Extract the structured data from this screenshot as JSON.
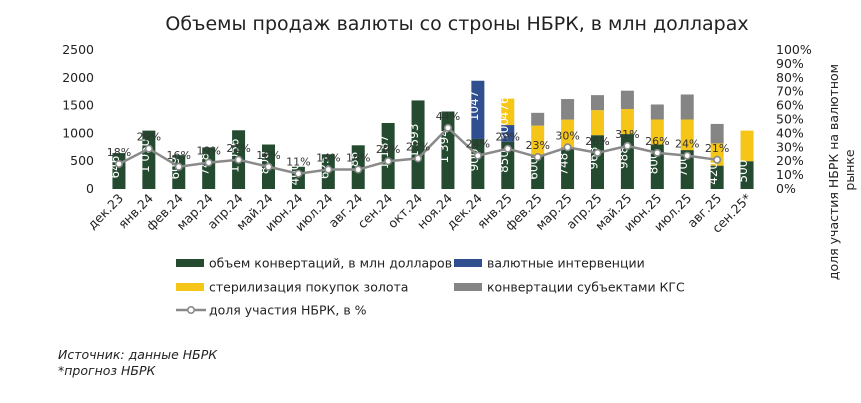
{
  "chart_data": {
    "type": "bar",
    "title": "Объемы продаж валюты со строны НБРК, в млн долларах",
    "ylabel": "",
    "y2label": "доля участия НБРК на валютном рынке",
    "ylim": [
      0,
      2500
    ],
    "y2lim": [
      0,
      1
    ],
    "yticks": [
      "0",
      "500",
      "1000",
      "1500",
      "2000",
      "2500"
    ],
    "y2ticks": [
      "0%",
      "10%",
      "20%",
      "30%",
      "40%",
      "50%",
      "60%",
      "70%",
      "80%",
      "90%",
      "100%"
    ],
    "categories": [
      "дек.23",
      "янв.24",
      "фев.24",
      "мар.24",
      "апр.24",
      "май.24",
      "июн.24",
      "июл.24",
      "авг.24",
      "сен.24",
      "окт.24",
      "ноя.24",
      "дек.24",
      "янв.25",
      "фев.25",
      "мар.25",
      "апр.25",
      "май.25",
      "июн.25",
      "июл.25",
      "авг.25",
      "сен.25*"
    ],
    "series": [
      {
        "name": "объем конвертаций, в млн долларов",
        "color": "#244a2f",
        "values": [
          646,
          1050,
          609,
          748,
          1056,
          800,
          400,
          625,
          786,
          1187,
          1593,
          1394,
          900,
          850,
          600,
          748,
          968,
          988,
          800,
          700,
          420,
          500
        ],
        "labels": [
          "646",
          "1 050",
          "609",
          "748",
          "1 056",
          "800",
          "400",
          "625",
          "786",
          "1 187",
          "1 593",
          "1 394",
          "900",
          "850",
          "600",
          "748",
          "968",
          "988",
          "800",
          "700",
          "420",
          "500"
        ]
      },
      {
        "name": "валютные интервенции",
        "color": "#2f4f8f",
        "values": [
          0,
          0,
          0,
          0,
          0,
          0,
          0,
          0,
          0,
          0,
          0,
          0,
          1047,
          300,
          0,
          0,
          0,
          0,
          0,
          0,
          0,
          0
        ],
        "labels": [
          "",
          "",
          "",
          "",
          "",
          "",
          "",
          "",
          "",
          "",
          "",
          "",
          "1047",
          "300",
          "",
          "",
          "",
          "",
          "",
          "",
          "",
          ""
        ]
      },
      {
        "name": "стерилизация покупок золота",
        "color": "#f5c518",
        "values": [
          0,
          0,
          0,
          0,
          0,
          0,
          0,
          0,
          0,
          0,
          0,
          0,
          0,
          476,
          540,
          500,
          450,
          450,
          450,
          550,
          400,
          550
        ],
        "labels": [
          "",
          "",
          "",
          "",
          "",
          "",
          "",
          "",
          "",
          "",
          "",
          "",
          "",
          "476",
          "",
          "",
          "",
          "",
          "",
          "",
          "",
          ""
        ]
      },
      {
        "name": "конвертации субъектами КГС",
        "color": "#858585",
        "values": [
          0,
          0,
          0,
          0,
          0,
          0,
          0,
          0,
          0,
          0,
          0,
          0,
          0,
          0,
          230,
          370,
          270,
          330,
          270,
          450,
          350,
          0
        ],
        "labels": []
      },
      {
        "name": "доля участия НБРК, в %",
        "type": "line",
        "color": "#8a8a8a",
        "values": [
          0.18,
          0.29,
          0.16,
          0.19,
          0.21,
          0.16,
          0.11,
          0.14,
          0.14,
          0.2,
          0.22,
          0.44,
          0.24,
          0.29,
          0.23,
          0.3,
          0.26,
          0.31,
          0.26,
          0.24,
          0.21,
          null
        ],
        "labels": [
          "18%",
          "29%",
          "16%",
          "19%",
          "21%",
          "16%",
          "11%",
          "14%",
          "14%",
          "20%",
          "22%",
          "44%",
          "24%",
          "29%",
          "23%",
          "30%",
          "26%",
          "31%",
          "26%",
          "24%",
          "21%",
          ""
        ]
      }
    ],
    "legend": "bottom",
    "grid": false
  },
  "notes": {
    "source": "Источник: данные НБРК",
    "forecast": "*прогноз НБРК"
  }
}
